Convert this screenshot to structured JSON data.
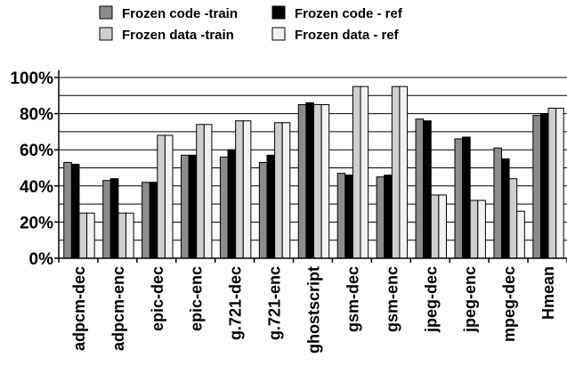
{
  "chart_data": {
    "type": "bar",
    "title": "",
    "xlabel": "",
    "ylabel": "",
    "ylim": [
      0,
      100
    ],
    "y_ticks": [
      "0%",
      "20%",
      "40%",
      "60%",
      "80%",
      "100%"
    ],
    "grid": true,
    "legend_position": "top",
    "categories": [
      "adpcm-dec",
      "adpcm-enc",
      "epic-dec",
      "epic-enc",
      "g.721-dec",
      "g.721-enc",
      "ghostscript",
      "gsm-dec",
      "gsm-enc",
      "jpeg-dec",
      "jpeg-enc",
      "mpeg-dec",
      "Hmean"
    ],
    "series": [
      {
        "name": "Frozen code -train",
        "color": "#8c8c8c",
        "values": [
          53,
          43,
          42,
          57,
          56,
          53,
          85,
          47,
          45,
          77,
          66,
          61,
          79
        ]
      },
      {
        "name": "Frozen code - ref",
        "color": "#000000",
        "values": [
          52,
          44,
          42,
          57,
          60,
          57,
          86,
          46,
          46,
          76,
          67,
          55,
          80
        ]
      },
      {
        "name": "Frozen data -train",
        "color": "#cfcfcf",
        "values": [
          25,
          25,
          68,
          74,
          76,
          75,
          85,
          95,
          95,
          35,
          32,
          44,
          83
        ]
      },
      {
        "name": "Frozen data - ref",
        "color": "#f2f2f2",
        "values": [
          25,
          25,
          68,
          74,
          76,
          75,
          85,
          95,
          95,
          35,
          32,
          26,
          83
        ]
      }
    ]
  }
}
